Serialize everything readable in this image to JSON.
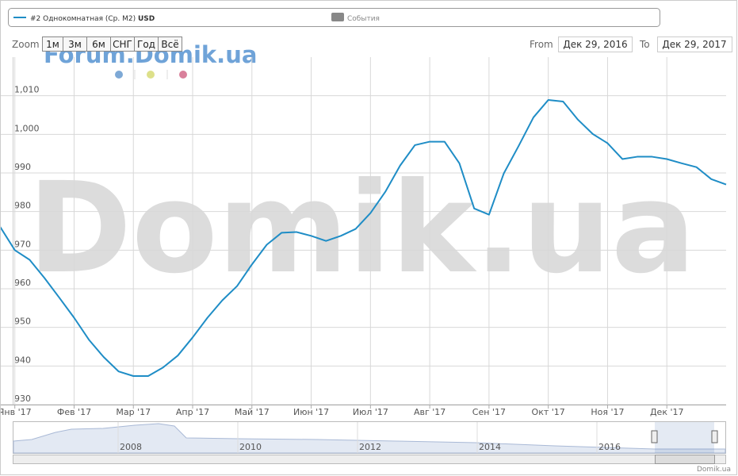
{
  "chart_data": {
    "type": "line",
    "categories": [
      null,
      "Янв '17",
      null,
      null,
      null,
      "Фев '17",
      null,
      null,
      null,
      "Мар '17",
      null,
      null,
      null,
      "Апр '17",
      null,
      null,
      null,
      "Май '17",
      null,
      null,
      null,
      "Июн '17",
      null,
      null,
      null,
      "Июл '17",
      null,
      null,
      null,
      "Авг '17",
      null,
      null,
      null,
      "Сен '17",
      null,
      null,
      null,
      "Окт '17",
      null,
      null,
      null,
      "Ноя '17",
      null,
      null,
      null,
      "Дек '17",
      null,
      null,
      null,
      null
    ],
    "series": [
      {
        "name": "#2 Однокомнатная (Ср. М2)",
        "unit": "USD",
        "color": "#1f8dc6",
        "values": [
          976.1,
          970,
          967.5,
          962.8,
          957.7,
          952.5,
          946.8,
          942.3,
          938.6,
          937.4,
          937.4,
          939.6,
          942.7,
          947.4,
          952.5,
          957,
          960.7,
          966.3,
          971.4,
          974.5,
          974.7,
          973.7,
          972.4,
          973.7,
          975.5,
          979.6,
          985.1,
          991.9,
          997.2,
          998.1,
          998.1,
          992.5,
          980.8,
          979.2,
          989.9,
          997,
          1004.4,
          1008.9,
          1008.5,
          1003.8,
          1000.1,
          997.7,
          993.6,
          994.2,
          994.2,
          993.6,
          992.5,
          991.5,
          988.4,
          987
        ]
      }
    ],
    "events": {
      "name": "События",
      "color": "#888888"
    },
    "ylim": [
      930,
      1020
    ],
    "yticks": [
      930,
      940,
      950,
      960,
      970,
      980,
      990,
      {
        "value": 1000,
        "label": "1,000"
      },
      {
        "value": 1010,
        "label": "1,010"
      }
    ],
    "grid": true
  },
  "range_selector": {
    "label": "Zoom",
    "buttons": [
      "1м",
      "3м",
      "6м",
      "СНГ",
      "Год",
      "Всё"
    ]
  },
  "date_inputs": {
    "from_label": "From",
    "from": "Дек 29, 2016",
    "to_label": "To",
    "to": "Дек 29, 2017"
  },
  "watermarks": [
    "Forum.Domik.ua",
    "Domik.ua"
  ],
  "navigator": {
    "years": [
      "2008",
      "2010",
      "2012",
      "2014",
      "2016"
    ]
  },
  "credits": "Domik.ua"
}
